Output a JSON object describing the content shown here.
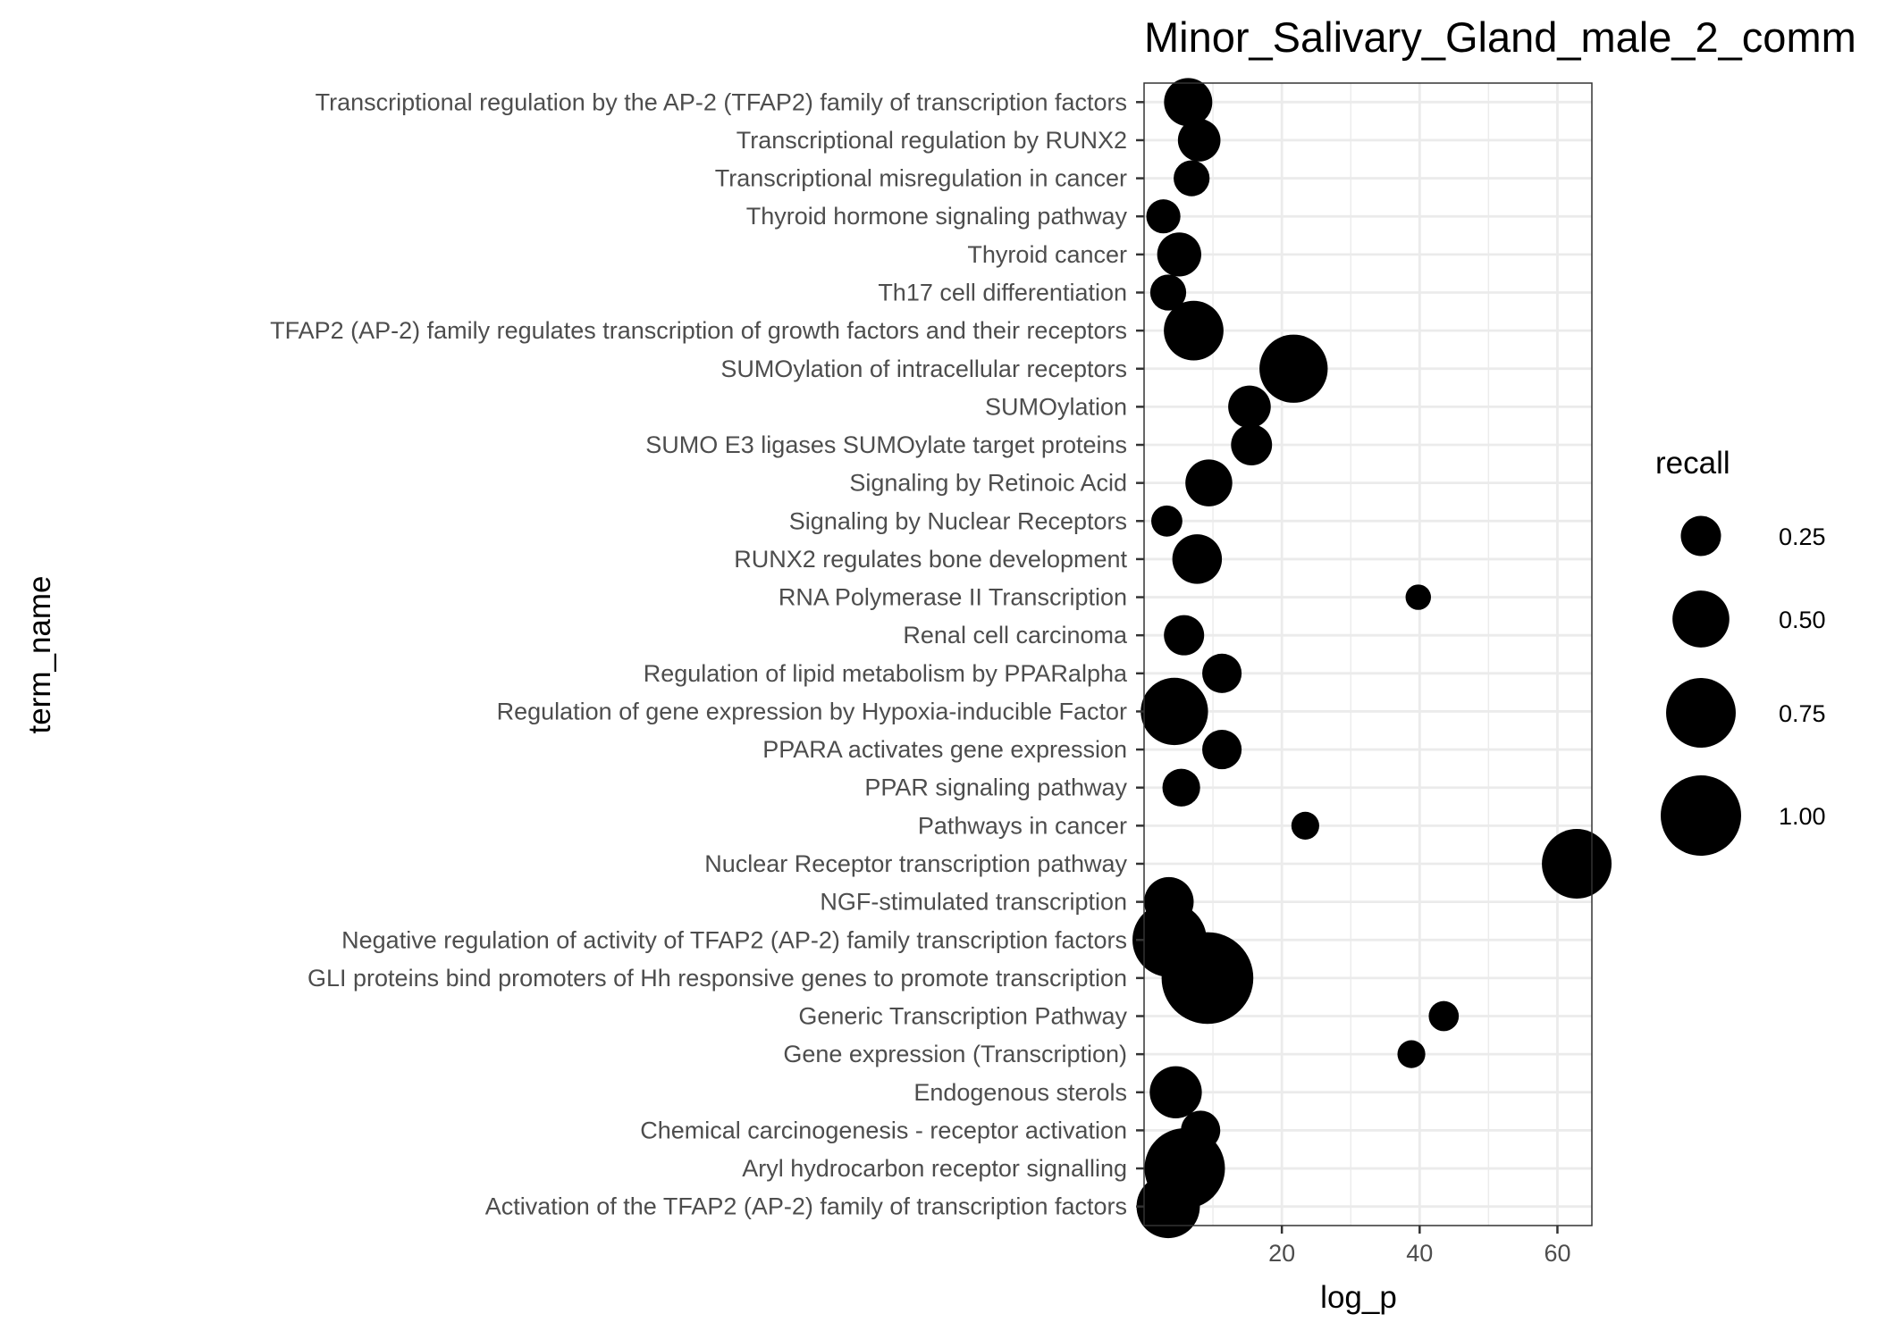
{
  "chart_data": {
    "type": "scatter",
    "title": "Minor_Salivary_Gland_male_2_comm",
    "xlabel": "log_p",
    "ylabel": "term_name",
    "xlim": [
      0,
      65
    ],
    "x_ticks": [
      20,
      40,
      60
    ],
    "grid": true,
    "legend": {
      "title": "recall",
      "placement": "right",
      "entries": [
        {
          "label": "0.25",
          "value": 0.25
        },
        {
          "label": "0.50",
          "value": 0.5
        },
        {
          "label": "0.75",
          "value": 0.75
        },
        {
          "label": "1.00",
          "value": 1.0
        }
      ]
    },
    "point_color": "#000000",
    "points": [
      {
        "term": "Transcriptional regulation by the AP-2 (TFAP2) family of transcription factors",
        "log_p": 6.4,
        "recall": 0.36
      },
      {
        "term": "Transcriptional regulation by RUNX2",
        "log_p": 8.0,
        "recall": 0.28
      },
      {
        "term": "Transcriptional misregulation in cancer",
        "log_p": 6.9,
        "recall": 0.2
      },
      {
        "term": "Thyroid hormone signaling pathway",
        "log_p": 2.8,
        "recall": 0.18
      },
      {
        "term": "Thyroid cancer",
        "log_p": 5.1,
        "recall": 0.3
      },
      {
        "term": "Th17 cell differentiation",
        "log_p": 3.5,
        "recall": 0.2
      },
      {
        "term": "TFAP2 (AP-2) family regulates transcription of growth factors and their receptors",
        "log_p": 7.2,
        "recall": 0.55
      },
      {
        "term": "SUMOylation of intracellular receptors",
        "log_p": 21.7,
        "recall": 0.72
      },
      {
        "term": "SUMOylation",
        "log_p": 15.3,
        "recall": 0.28
      },
      {
        "term": "SUMO E3 ligases SUMOylate target proteins",
        "log_p": 15.6,
        "recall": 0.26
      },
      {
        "term": "Signaling by Retinoic Acid",
        "log_p": 9.4,
        "recall": 0.34
      },
      {
        "term": "Signaling by Nuclear Receptors",
        "log_p": 3.3,
        "recall": 0.15
      },
      {
        "term": "RUNX2 regulates bone development",
        "log_p": 7.7,
        "recall": 0.38
      },
      {
        "term": "RNA Polymerase II Transcription",
        "log_p": 39.8,
        "recall": 0.1
      },
      {
        "term": "Renal cell carcinoma",
        "log_p": 5.8,
        "recall": 0.25
      },
      {
        "term": "Regulation of lipid metabolism by PPARalpha",
        "log_p": 11.3,
        "recall": 0.24
      },
      {
        "term": "Regulation of gene expression by Hypoxia-inducible Factor",
        "log_p": 4.4,
        "recall": 0.7
      },
      {
        "term": "PPARA activates gene expression",
        "log_p": 11.3,
        "recall": 0.24
      },
      {
        "term": "PPAR signaling pathway",
        "log_p": 5.4,
        "recall": 0.22
      },
      {
        "term": "Pathways in cancer",
        "log_p": 23.4,
        "recall": 0.12
      },
      {
        "term": "Nuclear Receptor transcription pathway",
        "log_p": 62.8,
        "recall": 0.75
      },
      {
        "term": "NGF-stimulated transcription",
        "log_p": 3.6,
        "recall": 0.38
      },
      {
        "term": "Negative regulation of activity of TFAP2 (AP-2) family transcription factors",
        "log_p": 3.7,
        "recall": 0.85
      },
      {
        "term": "GLI proteins bind promoters of Hh responsive genes to promote transcription",
        "log_p": 9.2,
        "recall": 1.3
      },
      {
        "term": "Generic Transcription Pathway",
        "log_p": 43.5,
        "recall": 0.14
      },
      {
        "term": "Gene expression (Transcription)",
        "log_p": 38.8,
        "recall": 0.12
      },
      {
        "term": "Endogenous sterols",
        "log_p": 4.6,
        "recall": 0.42
      },
      {
        "term": "Chemical carcinogenesis - receptor activation",
        "log_p": 8.2,
        "recall": 0.24
      },
      {
        "term": "Aryl hydrocarbon receptor signalling",
        "log_p": 5.9,
        "recall": 1.0
      },
      {
        "term": "Activation of the TFAP2 (AP-2) family of transcription factors",
        "log_p": 3.5,
        "recall": 0.62
      }
    ]
  }
}
